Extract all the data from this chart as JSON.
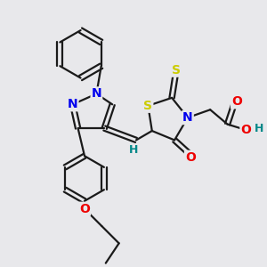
{
  "bg_color": "#e8e8eb",
  "bond_color": "#1a1a1a",
  "bond_width": 1.6,
  "atom_colors": {
    "N": "#0000ee",
    "O": "#ee0000",
    "S": "#cccc00",
    "H": "#008888",
    "C": "#1a1a1a"
  },
  "font_size_atom": 10,
  "fig_size": [
    3.0,
    3.0
  ],
  "dpi": 100
}
